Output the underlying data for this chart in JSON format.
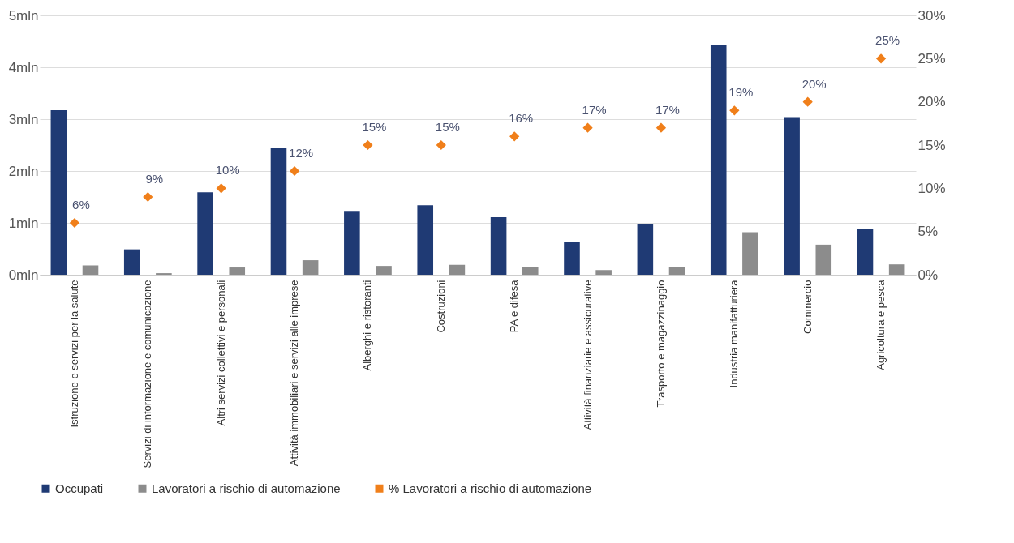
{
  "chart_data": {
    "type": "bar",
    "categories": [
      "Istruzione e servizi per la salute",
      "Servizi di informazione e comunicazione",
      "Altri servizi collettivi e personali",
      "Attività immobiliari e servizi alle imprese",
      "Alberghi e ristoranti",
      "Costruzioni",
      "PA e difesa",
      "Attività finanziarie e assicurative",
      "Trasporto e magazzinaggio",
      "Industria manifatturiera",
      "Commercio",
      "Agricoltura e pesca"
    ],
    "series": [
      {
        "name": "Occupati",
        "color": "#1f3a74",
        "values": [
          3.17,
          0.49,
          1.59,
          2.45,
          1.23,
          1.34,
          1.11,
          0.64,
          0.98,
          4.43,
          3.04,
          0.89
        ]
      },
      {
        "name": "Lavoratori a rischio di automazione",
        "color": "#8c8c8c",
        "values": [
          0.18,
          0.03,
          0.14,
          0.28,
          0.17,
          0.19,
          0.15,
          0.09,
          0.15,
          0.82,
          0.58,
          0.2
        ]
      },
      {
        "name": "% Lavoratori a rischio di automazione",
        "type": "scatter",
        "axis": "y2",
        "color": "#f07f1a",
        "marker": "diamond",
        "data_labels": true,
        "value_labels": [
          "6%",
          "9%",
          "10%",
          "12%",
          "15%",
          "15%",
          "16%",
          "17%",
          "17%",
          "19%",
          "20%",
          "25%"
        ],
        "values": [
          6,
          9,
          10,
          12,
          15,
          15,
          16,
          17,
          17,
          19,
          20,
          25
        ]
      }
    ],
    "ylim": [
      0,
      5
    ],
    "yticks": [
      {
        "value": 0,
        "label": "0mln"
      },
      {
        "value": 1,
        "label": "1mln"
      },
      {
        "value": 2,
        "label": "2mln"
      },
      {
        "value": 3,
        "label": "3mln"
      },
      {
        "value": 4,
        "label": "4mln"
      },
      {
        "value": 5,
        "label": "5mln"
      }
    ],
    "y2lim": [
      0,
      30
    ],
    "y2ticks": [
      {
        "value": 0,
        "label": "0%"
      },
      {
        "value": 5,
        "label": "5%"
      },
      {
        "value": 10,
        "label": "10%"
      },
      {
        "value": 15,
        "label": "15%"
      },
      {
        "value": 20,
        "label": "20%"
      },
      {
        "value": 25,
        "label": "25%"
      },
      {
        "value": 30,
        "label": "30%"
      }
    ],
    "grid": "y",
    "legend": "bottom"
  }
}
